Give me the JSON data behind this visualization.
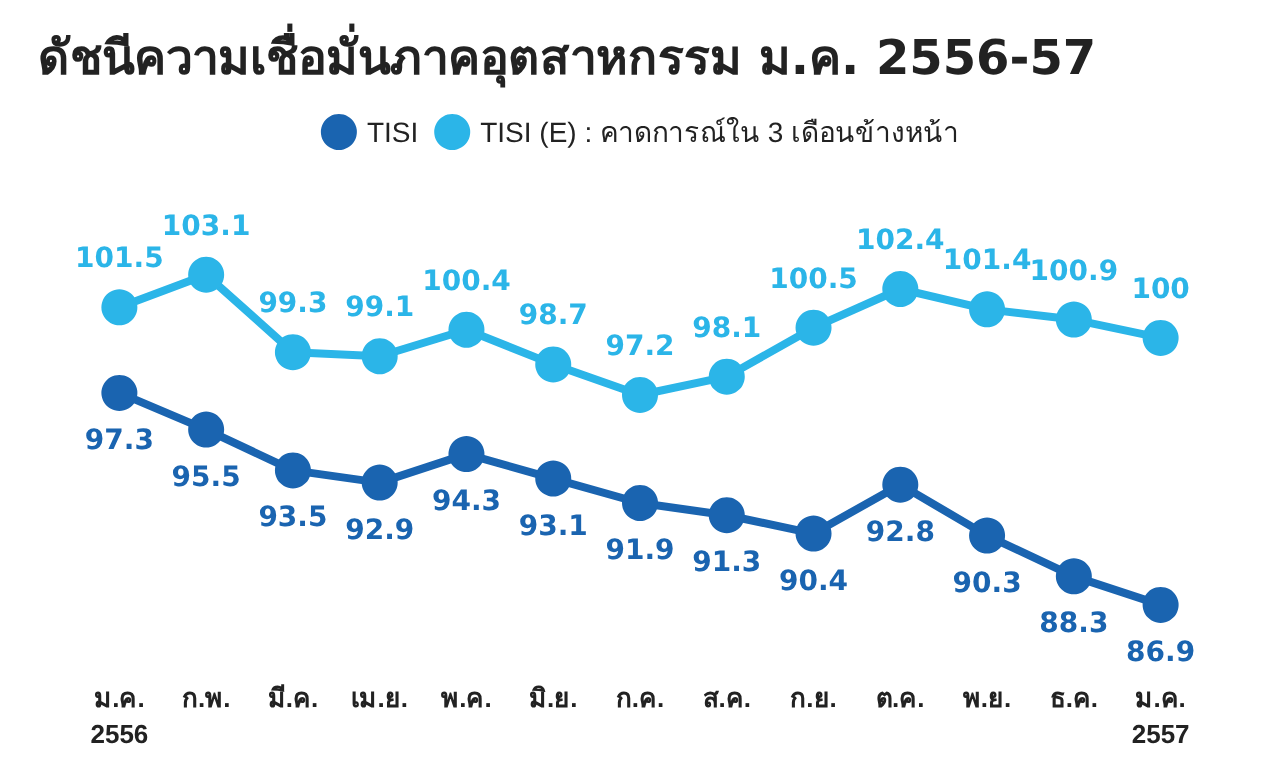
{
  "chart_data": {
    "type": "line",
    "title": "ดัชนีความเชื่อมั่นภาคอุตสาหกรรม ม.ค. 2556-57",
    "categories": [
      "ม.ค.\n2556",
      "ก.พ.",
      "มี.ค.",
      "เม.ย.",
      "พ.ค.",
      "มิ.ย.",
      "ก.ค.",
      "ส.ค.",
      "ก.ย.",
      "ต.ค.",
      "พ.ย.",
      "ธ.ค.",
      "ม.ค.\n2557"
    ],
    "series": [
      {
        "name": "TISI",
        "color": "#1a64b0",
        "values": [
          97.3,
          95.5,
          93.5,
          92.9,
          94.3,
          93.1,
          91.9,
          91.3,
          90.4,
          92.8,
          90.3,
          88.3,
          86.9
        ]
      },
      {
        "name": "TISI (E) : คาดการณ์ใน 3 เดือนข้างหน้า",
        "color": "#2bb5e8",
        "values": [
          101.5,
          103.1,
          99.3,
          99.1,
          100.4,
          98.7,
          97.2,
          98.1,
          100.5,
          102.4,
          101.4,
          100.9,
          100
        ]
      }
    ],
    "data_labels": true,
    "legend": "top",
    "marker": "circle",
    "grid": false
  }
}
